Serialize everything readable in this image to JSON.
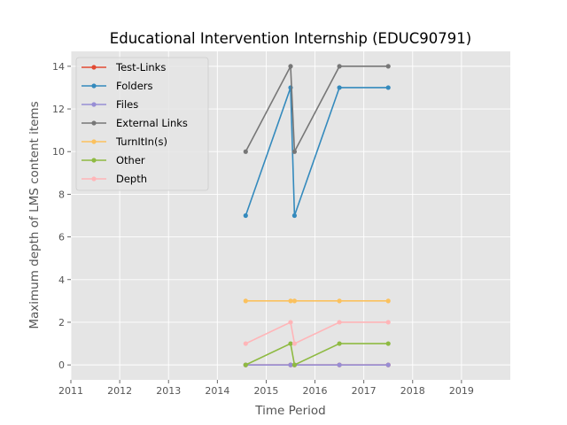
{
  "chart_data": {
    "type": "line",
    "title": "Educational Intervention Internship (EDUC90791)",
    "xlabel": "Time Period",
    "ylabel": "Maximum depth of LMS content items",
    "xlim": [
      2011,
      2020
    ],
    "ylim": [
      -0.7,
      14.7
    ],
    "xticks": [
      "2011",
      "2012",
      "2013",
      "2014",
      "2015",
      "2016",
      "2017",
      "2018",
      "2019"
    ],
    "yticks": [
      "0",
      "2",
      "4",
      "6",
      "8",
      "10",
      "12",
      "14"
    ],
    "grid": true,
    "legend_position": "top-left",
    "x": [
      2014.58,
      2015.5,
      2015.58,
      2016.5,
      2017.5
    ],
    "series": [
      {
        "name": "Test-Links",
        "color": "#E24A33",
        "values": [
          0,
          0,
          0,
          0,
          0
        ]
      },
      {
        "name": "Folders",
        "color": "#348ABD",
        "values": [
          7,
          13,
          7,
          13,
          13
        ]
      },
      {
        "name": "Files",
        "color": "#988ED5",
        "values": [
          0,
          0,
          0,
          0,
          0
        ]
      },
      {
        "name": "External Links",
        "color": "#777777",
        "values": [
          10,
          14,
          10,
          14,
          14
        ]
      },
      {
        "name": "TurnItIn(s)",
        "color": "#FBC15E",
        "values": [
          3,
          3,
          3,
          3,
          3
        ]
      },
      {
        "name": "Other",
        "color": "#8EBA42",
        "values": [
          0,
          1,
          0,
          1,
          1
        ]
      },
      {
        "name": "Depth",
        "color": "#FFB5B8",
        "values": [
          1,
          2,
          1,
          2,
          2
        ]
      }
    ]
  }
}
